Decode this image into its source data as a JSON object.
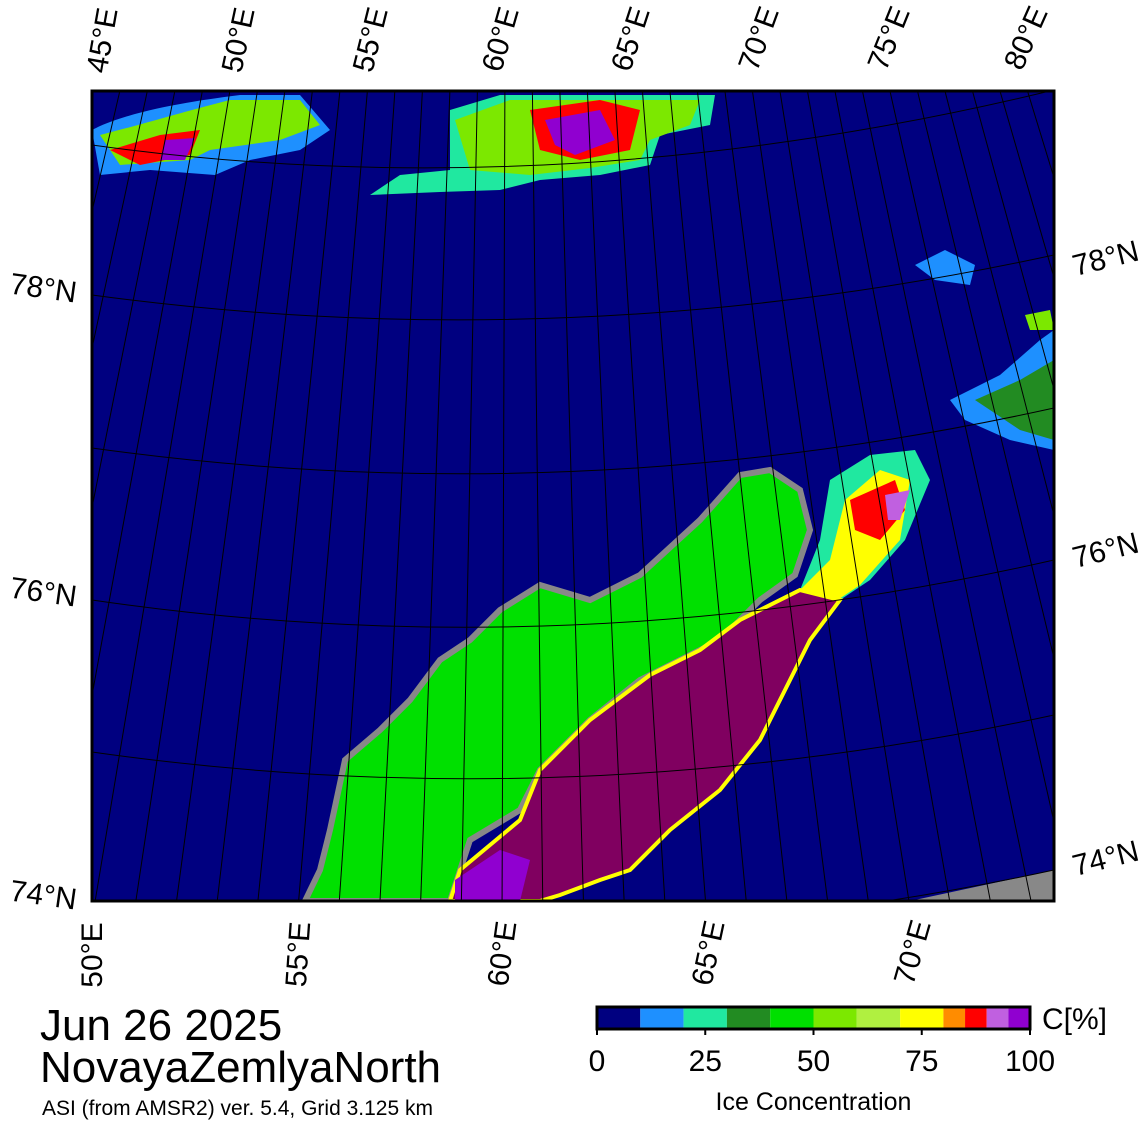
{
  "date": "Jun 26 2025",
  "region": "NovayaZemlyaNorth",
  "source": "ASI (from AMSR2) ver. 5.4,  Grid 3.125 km",
  "top_lon_labels": [
    "45°E",
    "50°E",
    "55°E",
    "60°E",
    "65°E",
    "70°E",
    "75°E",
    "80°E"
  ],
  "bottom_lon_labels": [
    "50°E",
    "55°E",
    "60°E",
    "65°E",
    "70°E"
  ],
  "left_lat_labels": [
    "78°N",
    "76°N",
    "74°N"
  ],
  "right_lat_labels": [
    "78°N",
    "76°N",
    "74°N"
  ],
  "colorbar": {
    "unit": "C[%]",
    "label": "Ice Concentration",
    "lim": [
      0,
      100
    ],
    "ticks": [
      0,
      25,
      50,
      75,
      100
    ],
    "bounds": [
      0,
      10,
      20,
      30,
      40,
      50,
      60,
      70,
      80,
      85,
      90,
      95,
      100
    ],
    "colors": [
      "#000080",
      "#1e90ff",
      "#20e8a0",
      "#228b22",
      "#00e000",
      "#7ce800",
      "#b0f040",
      "#ffff00",
      "#ff8c00",
      "#ff0000",
      "#c060e0",
      "#9000d0"
    ]
  }
}
